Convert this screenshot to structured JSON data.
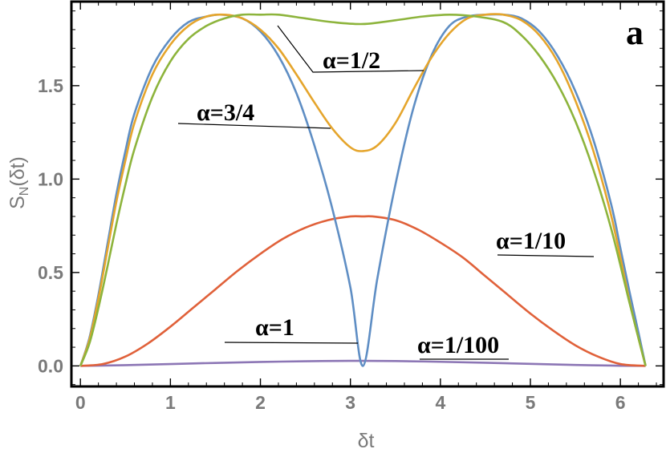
{
  "chart_data": {
    "type": "line",
    "title": "",
    "panel_label": "a",
    "xlabel": "δt",
    "ylabel_main": "S",
    "ylabel_sub": "N",
    "ylabel_tail": "(δt)",
    "xlim": [
      -0.1,
      6.48
    ],
    "ylim": [
      -0.11,
      1.95
    ],
    "x_ticks": [
      "0",
      "1",
      "2",
      "3",
      "4",
      "5",
      "6"
    ],
    "y_ticks": [
      "0.0",
      "0.5",
      "1.0",
      "1.5"
    ],
    "grid": false,
    "series": [
      {
        "name": "α=1/100",
        "color": "#8c76b5",
        "x": [
          0,
          0.5,
          1,
          1.5,
          2,
          2.5,
          3,
          3.14,
          3.5,
          4,
          4.5,
          5,
          5.5,
          6,
          6.28
        ],
        "y": [
          0,
          0.004,
          0.01,
          0.016,
          0.021,
          0.025,
          0.027,
          0.027,
          0.026,
          0.022,
          0.017,
          0.011,
          0.005,
          0.001,
          0
        ]
      },
      {
        "name": "α=1/10",
        "color": "#e0613a",
        "x": [
          0,
          0.25,
          0.5,
          0.75,
          1,
          1.25,
          1.5,
          1.75,
          2,
          2.25,
          2.5,
          2.75,
          3,
          3.14,
          3.25,
          3.5,
          3.75,
          4,
          4.25,
          4.5,
          4.75,
          5,
          5.25,
          5.5,
          5.75,
          6,
          6.28
        ],
        "y": [
          0,
          0.01,
          0.05,
          0.12,
          0.21,
          0.31,
          0.41,
          0.51,
          0.6,
          0.68,
          0.74,
          0.78,
          0.8,
          0.8,
          0.8,
          0.78,
          0.73,
          0.66,
          0.58,
          0.48,
          0.38,
          0.28,
          0.19,
          0.11,
          0.05,
          0.01,
          0
        ]
      },
      {
        "name": "α=1",
        "color": "#5f8ec4",
        "x": [
          0,
          0.1,
          0.2,
          0.3,
          0.4,
          0.5,
          0.6,
          0.8,
          1,
          1.2,
          1.4,
          1.57,
          1.8,
          2,
          2.2,
          2.4,
          2.6,
          2.8,
          3,
          3.14,
          3.3,
          3.5,
          3.7,
          3.9,
          4.1,
          4.3,
          4.5,
          4.71,
          4.9,
          5.1,
          5.3,
          5.5,
          5.7,
          5.9,
          6,
          6.1,
          6.2,
          6.28
        ],
        "y": [
          0,
          0.15,
          0.38,
          0.65,
          0.92,
          1.15,
          1.35,
          1.6,
          1.75,
          1.84,
          1.87,
          1.88,
          1.86,
          1.79,
          1.66,
          1.46,
          1.18,
          0.84,
          0.42,
          0,
          0.47,
          0.97,
          1.38,
          1.66,
          1.82,
          1.87,
          1.88,
          1.88,
          1.86,
          1.79,
          1.66,
          1.47,
          1.21,
          0.86,
          0.63,
          0.4,
          0.18,
          0
        ]
      },
      {
        "name": "α=1/2",
        "color": "#e5a52c",
        "x": [
          0,
          0.1,
          0.2,
          0.3,
          0.4,
          0.5,
          0.6,
          0.8,
          1,
          1.2,
          1.4,
          1.6,
          1.8,
          2,
          2.2,
          2.4,
          2.6,
          2.8,
          3,
          3.14,
          3.3,
          3.5,
          3.7,
          3.9,
          4.1,
          4.3,
          4.5,
          4.7,
          4.9,
          5.1,
          5.3,
          5.5,
          5.7,
          5.9,
          6.1,
          6.2,
          6.28
        ],
        "y": [
          0,
          0.14,
          0.36,
          0.62,
          0.88,
          1.1,
          1.3,
          1.56,
          1.72,
          1.82,
          1.87,
          1.88,
          1.86,
          1.8,
          1.7,
          1.56,
          1.41,
          1.27,
          1.17,
          1.15,
          1.18,
          1.3,
          1.48,
          1.65,
          1.78,
          1.86,
          1.88,
          1.88,
          1.85,
          1.77,
          1.63,
          1.42,
          1.15,
          0.8,
          0.35,
          0.15,
          0
        ]
      },
      {
        "name": "α=3/4",
        "color": "#8db43c",
        "x": [
          0,
          0.1,
          0.2,
          0.3,
          0.4,
          0.5,
          0.6,
          0.8,
          1,
          1.2,
          1.4,
          1.6,
          1.8,
          2,
          2.2,
          2.5,
          2.8,
          3.14,
          3.5,
          3.8,
          4.1,
          4.4,
          4.7,
          4.9,
          5.1,
          5.3,
          5.5,
          5.7,
          5.9,
          6.1,
          6.2,
          6.28
        ],
        "y": [
          0,
          0.12,
          0.31,
          0.53,
          0.76,
          0.97,
          1.16,
          1.44,
          1.63,
          1.75,
          1.82,
          1.86,
          1.88,
          1.88,
          1.88,
          1.86,
          1.84,
          1.83,
          1.85,
          1.87,
          1.88,
          1.87,
          1.84,
          1.77,
          1.66,
          1.51,
          1.31,
          1.05,
          0.73,
          0.34,
          0.15,
          0
        ]
      }
    ],
    "annotations": [
      {
        "text": "α=1/2"
      },
      {
        "text": "α=3/4"
      },
      {
        "text": "α=1/10"
      },
      {
        "text": "α=1"
      },
      {
        "text": "α=1/100"
      }
    ]
  }
}
